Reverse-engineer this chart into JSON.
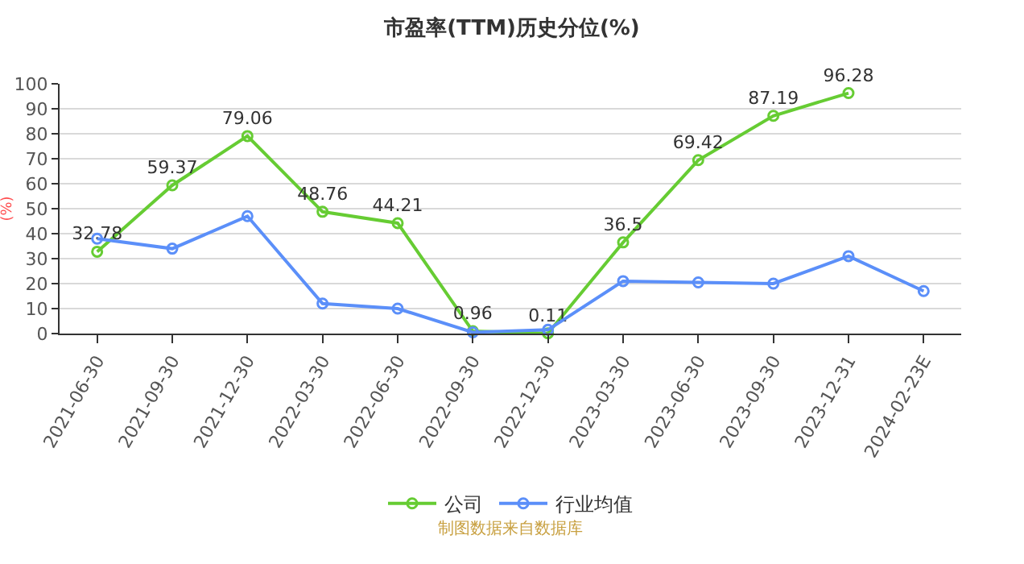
{
  "chart_data": {
    "type": "line",
    "title": "市盈率(TTM)历史分位(%)",
    "ylabel": "(%)",
    "categories": [
      "2021-06-30",
      "2021-09-30",
      "2021-12-30",
      "2022-03-30",
      "2022-06-30",
      "2022-09-30",
      "2022-12-30",
      "2023-03-30",
      "2023-06-30",
      "2023-09-30",
      "2023-12-31",
      "2024-02-23E"
    ],
    "series": [
      {
        "name": "公司",
        "color": "#66cc33",
        "values": [
          32.78,
          59.37,
          79.06,
          48.76,
          44.21,
          0.96,
          0.11,
          36.5,
          69.42,
          87.19,
          96.28,
          null
        ],
        "value_labels": [
          "32.78",
          "59.37",
          "79.06",
          "48.76",
          "44.21",
          "0.96",
          "0.11",
          "36.5",
          "69.42",
          "87.19",
          "96.28",
          null
        ]
      },
      {
        "name": "行业均值",
        "color": "#5b8ff9",
        "values": [
          38,
          34,
          47,
          12,
          10,
          0.5,
          1.5,
          21,
          20.5,
          20,
          31,
          17
        ]
      }
    ],
    "ylim": [
      0,
      100
    ],
    "yticks": [
      0,
      10,
      20,
      30,
      40,
      50,
      60,
      70,
      80,
      90,
      100
    ],
    "grid": "y",
    "legend": "bottom",
    "marker": "circle",
    "line_style": "solid",
    "annotations": [
      "制图数据来自数据库"
    ]
  }
}
